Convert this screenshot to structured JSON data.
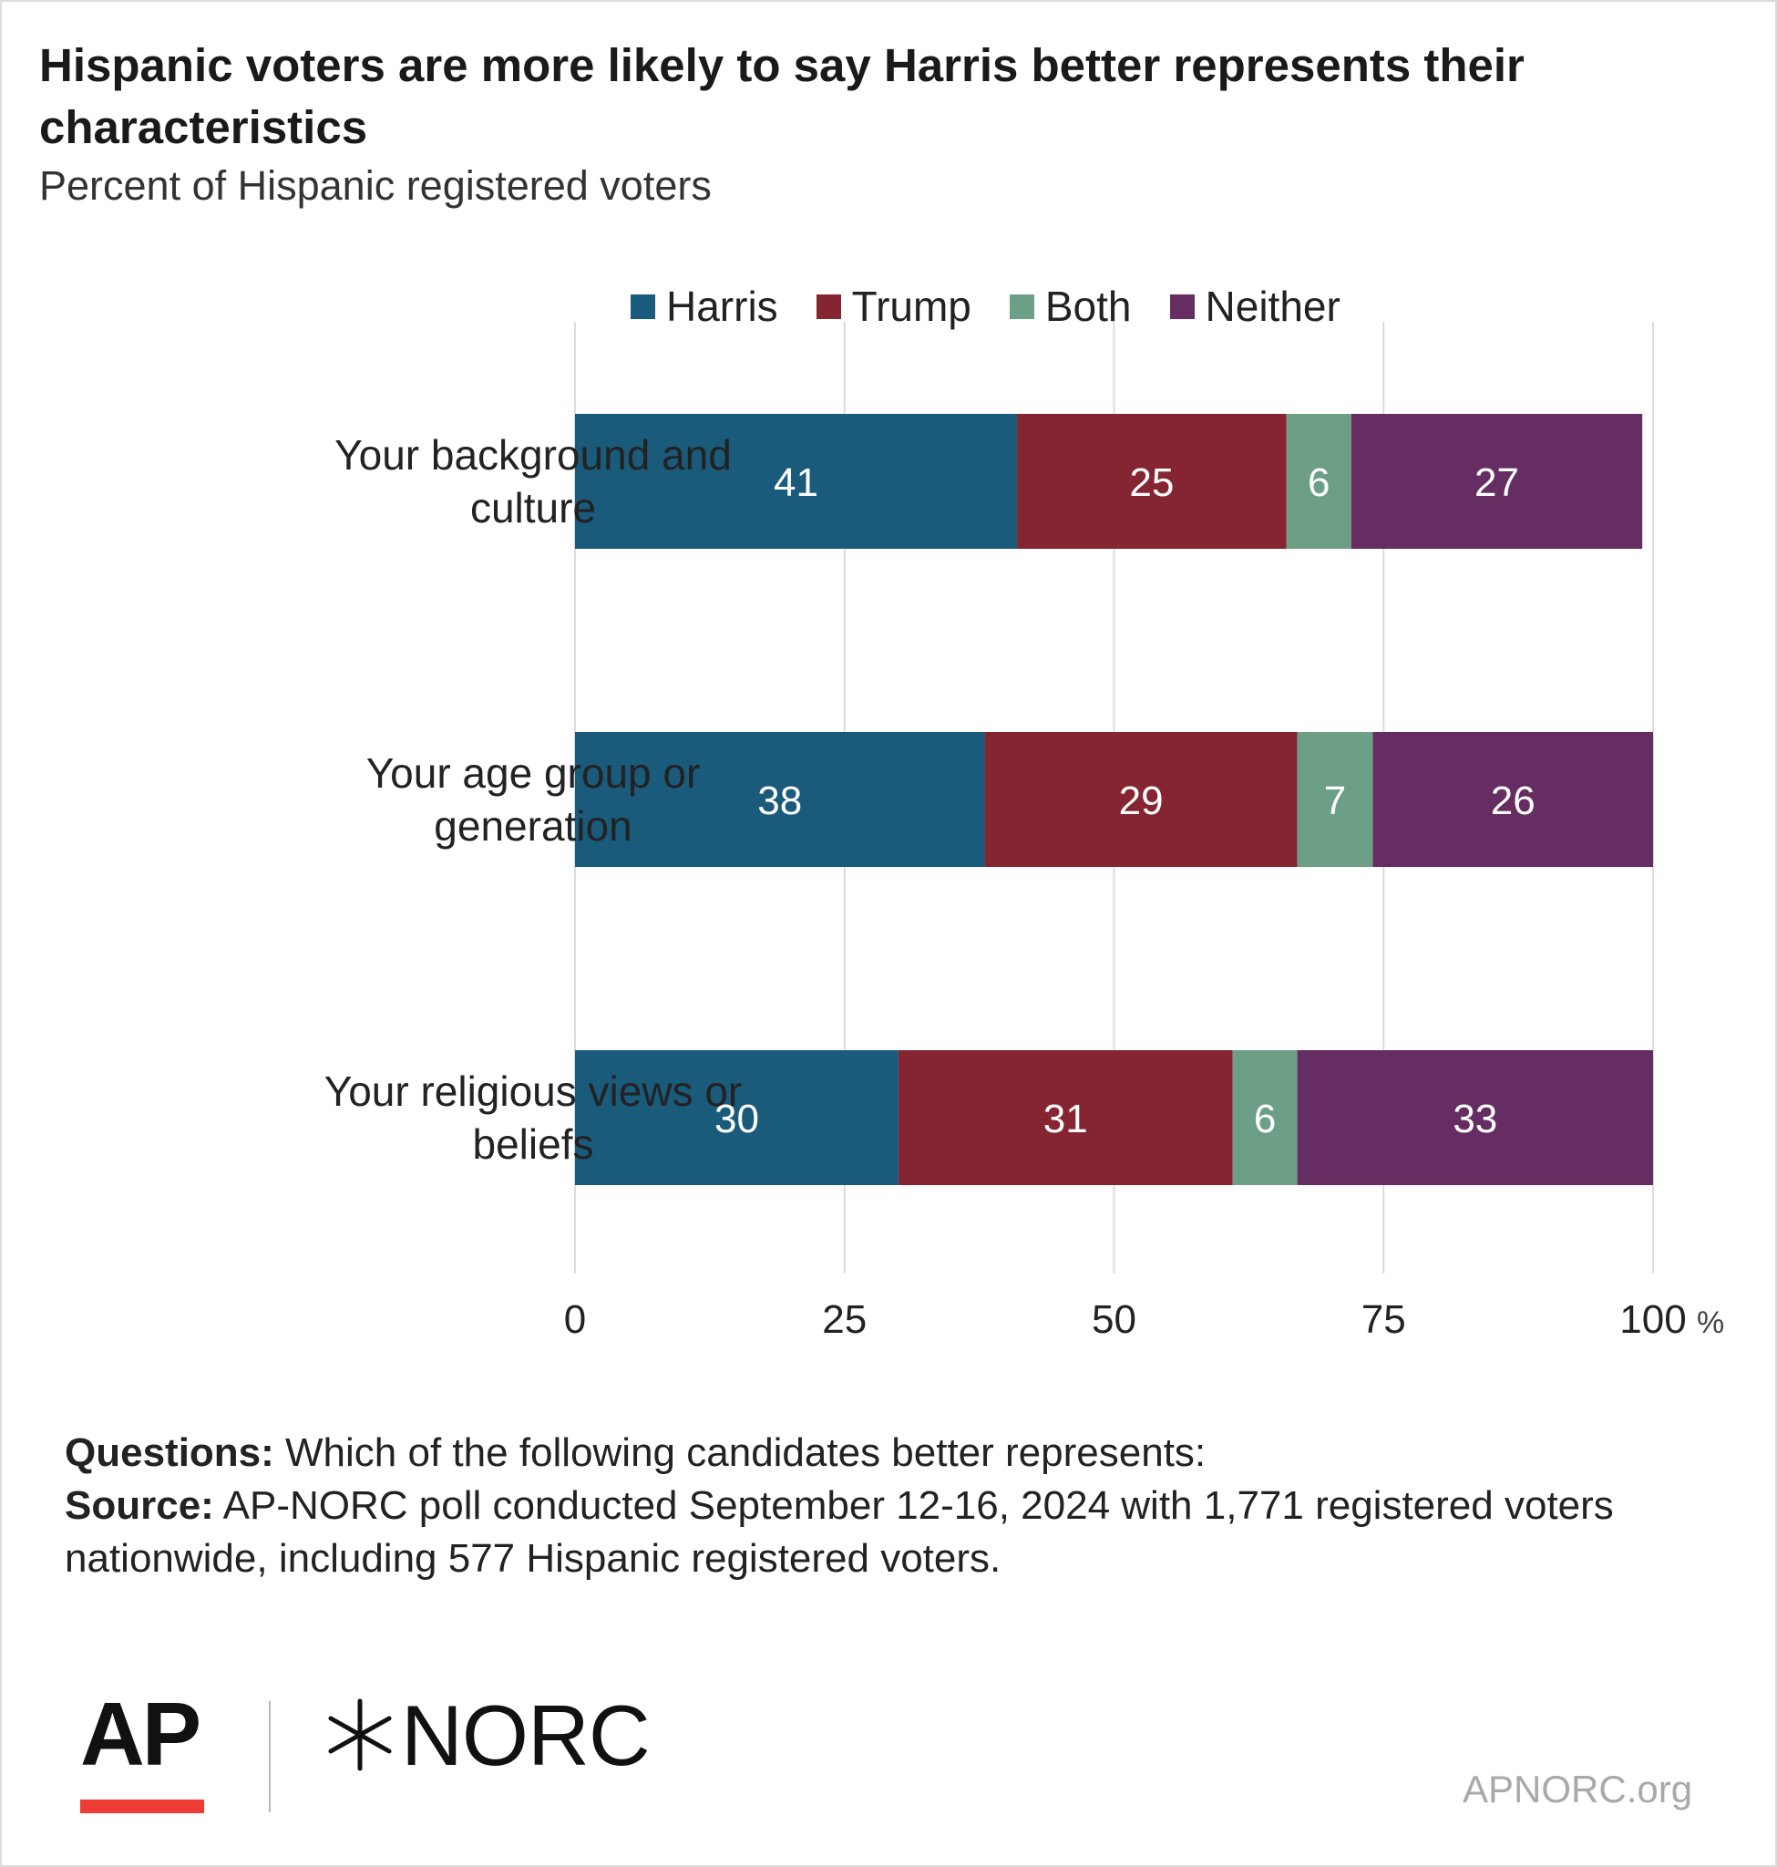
{
  "title": "Hispanic voters are more likely to say Harris better represents their characteristics",
  "subtitle": "Percent of Hispanic registered voters",
  "chart_data": {
    "type": "bar",
    "orientation": "horizontal",
    "stacked": true,
    "categories": [
      [
        "Your background and",
        "culture"
      ],
      [
        "Your age group or",
        "generation"
      ],
      [
        "Your religious views or",
        "beliefs"
      ]
    ],
    "series": [
      {
        "name": "Harris",
        "color": "#1a5b7c",
        "values": [
          41,
          38,
          30
        ]
      },
      {
        "name": "Trump",
        "color": "#862532",
        "values": [
          25,
          29,
          31
        ]
      },
      {
        "name": "Both",
        "color": "#6d9e86",
        "values": [
          6,
          7,
          6
        ]
      },
      {
        "name": "Neither",
        "color": "#652d61",
        "values": [
          27,
          26,
          33
        ]
      }
    ],
    "xlim": [
      0,
      100
    ],
    "xticks": [
      0,
      25,
      50,
      75,
      100
    ],
    "xtick_labels": [
      "0",
      "25",
      "50",
      "75",
      "100"
    ],
    "x_unit": "%",
    "grid": true,
    "legend_position": "top"
  },
  "footnote": {
    "questions_label": "Questions:",
    "questions_text": "Which of the following candidates better represents:",
    "source_label": "Source:",
    "source_text": "AP-NORC poll conducted September 12-16, 2024 with 1,771 registered voters nationwide, including 577 Hispanic registered voters."
  },
  "logos": {
    "ap": "AP",
    "norc": "NORC",
    "ap_accent_color": "#ef3c36"
  },
  "site": "APNORC.org"
}
